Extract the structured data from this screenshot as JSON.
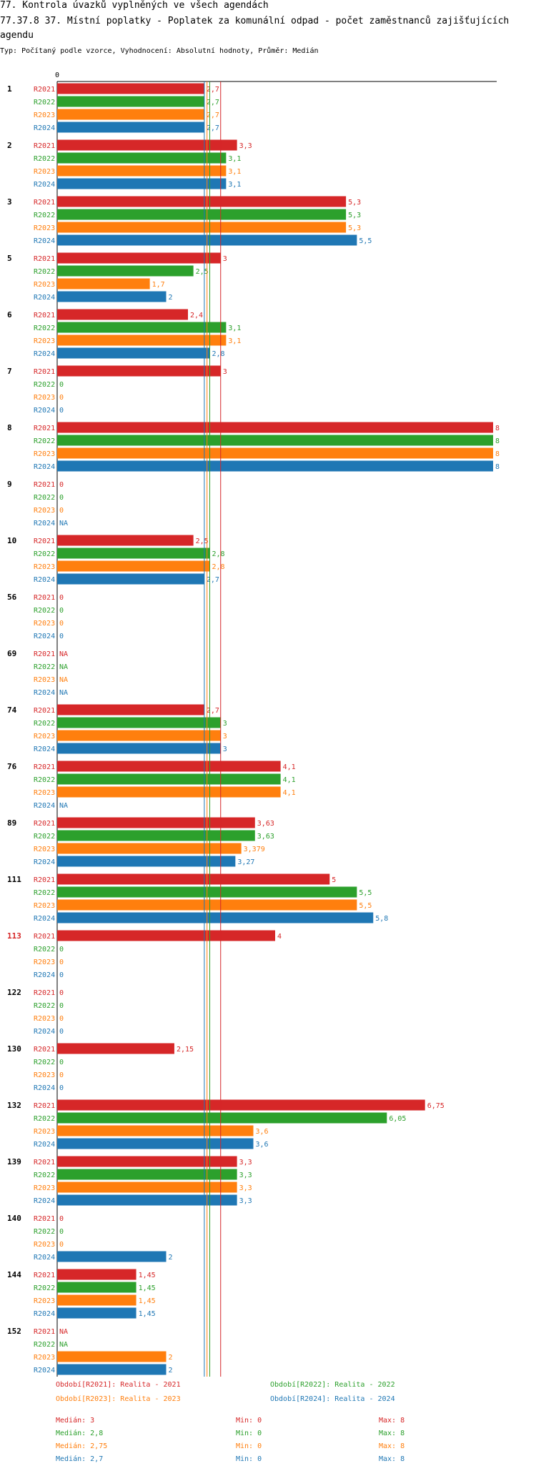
{
  "title": "77. Kontrola úvazků vyplněných ve všech agendách",
  "subtitle": "77.37.8 37. Místní poplatky - Poplatek za komunální odpad - počet zaměstnanců zajišťujících agendu",
  "type_line": "Typ: Počítaný podle vzorce, Vyhodnocení: Absolutní hodnoty, Průměr: Medián",
  "colors": {
    "R2021": "#d62728",
    "R2022": "#2ca02c",
    "R2023": "#ff7f0e",
    "R2024": "#1f77b4",
    "highlight": "#d62728"
  },
  "chart_data": {
    "type": "bar",
    "orientation": "horizontal",
    "x_tick_label": "0",
    "xlim": [
      0,
      8
    ],
    "series_names": [
      "R2021",
      "R2022",
      "R2023",
      "R2024"
    ],
    "highlighted_category": "113",
    "median_lines": {
      "R2021": 3,
      "R2022": 2.8,
      "R2023": 2.75,
      "R2024": 2.7
    },
    "groups": [
      {
        "label": "1",
        "values": [
          2.7,
          2.7,
          2.7,
          2.7
        ],
        "labels": [
          "2,7",
          "2,7",
          "2,7",
          "2,7"
        ]
      },
      {
        "label": "2",
        "values": [
          3.3,
          3.1,
          3.1,
          3.1
        ],
        "labels": [
          "3,3",
          "3,1",
          "3,1",
          "3,1"
        ]
      },
      {
        "label": "3",
        "values": [
          5.3,
          5.3,
          5.3,
          5.5
        ],
        "labels": [
          "5,3",
          "5,3",
          "5,3",
          "5,5"
        ]
      },
      {
        "label": "5",
        "values": [
          3,
          2.5,
          1.7,
          2
        ],
        "labels": [
          "3",
          "2,5",
          "1,7",
          "2"
        ]
      },
      {
        "label": "6",
        "values": [
          2.4,
          3.1,
          3.1,
          2.8
        ],
        "labels": [
          "2,4",
          "3,1",
          "3,1",
          "2,8"
        ]
      },
      {
        "label": "7",
        "values": [
          3,
          0,
          0,
          0
        ],
        "labels": [
          "3",
          "0",
          "0",
          "0"
        ]
      },
      {
        "label": "8",
        "values": [
          8,
          8,
          8,
          8
        ],
        "labels": [
          "8",
          "8",
          "8",
          "8"
        ]
      },
      {
        "label": "9",
        "values": [
          0,
          0,
          0,
          null
        ],
        "labels": [
          "0",
          "0",
          "0",
          "NA"
        ]
      },
      {
        "label": "10",
        "values": [
          2.5,
          2.8,
          2.8,
          2.7
        ],
        "labels": [
          "2,5",
          "2,8",
          "2,8",
          "2,7"
        ]
      },
      {
        "label": "56",
        "values": [
          0,
          0,
          0,
          0
        ],
        "labels": [
          "0",
          "0",
          "0",
          "0"
        ]
      },
      {
        "label": "69",
        "values": [
          null,
          null,
          null,
          null
        ],
        "labels": [
          "NA",
          "NA",
          "NA",
          "NA"
        ]
      },
      {
        "label": "74",
        "values": [
          2.7,
          3,
          3,
          3
        ],
        "labels": [
          "2,7",
          "3",
          "3",
          "3"
        ]
      },
      {
        "label": "76",
        "values": [
          4.1,
          4.1,
          4.1,
          null
        ],
        "labels": [
          "4,1",
          "4,1",
          "4,1",
          "NA"
        ]
      },
      {
        "label": "89",
        "values": [
          3.63,
          3.63,
          3.379,
          3.27
        ],
        "labels": [
          "3,63",
          "3,63",
          "3,379",
          "3,27"
        ]
      },
      {
        "label": "111",
        "values": [
          5,
          5.5,
          5.5,
          5.8
        ],
        "labels": [
          "5",
          "5,5",
          "5,5",
          "5,8"
        ]
      },
      {
        "label": "113",
        "values": [
          4,
          0,
          0,
          0
        ],
        "labels": [
          "4",
          "0",
          "0",
          "0"
        ]
      },
      {
        "label": "122",
        "values": [
          0,
          0,
          0,
          0
        ],
        "labels": [
          "0",
          "0",
          "0",
          "0"
        ]
      },
      {
        "label": "130",
        "values": [
          2.15,
          0,
          0,
          0
        ],
        "labels": [
          "2,15",
          "0",
          "0",
          "0"
        ]
      },
      {
        "label": "132",
        "values": [
          6.75,
          6.05,
          3.6,
          3.6
        ],
        "labels": [
          "6,75",
          "6,05",
          "3,6",
          "3,6"
        ]
      },
      {
        "label": "139",
        "values": [
          3.3,
          3.3,
          3.3,
          3.3
        ],
        "labels": [
          "3,3",
          "3,3",
          "3,3",
          "3,3"
        ]
      },
      {
        "label": "140",
        "values": [
          0,
          0,
          0,
          2
        ],
        "labels": [
          "0",
          "0",
          "0",
          "2"
        ]
      },
      {
        "label": "144",
        "values": [
          1.45,
          1.45,
          1.45,
          1.45
        ],
        "labels": [
          "1,45",
          "1,45",
          "1,45",
          "1,45"
        ]
      },
      {
        "label": "152",
        "values": [
          null,
          null,
          2,
          2
        ],
        "labels": [
          "NA",
          "NA",
          "2",
          "2"
        ]
      }
    ]
  },
  "legend": {
    "periods": [
      "Období[R2021]: Realita - 2021",
      "Období[R2022]: Realita - 2022",
      "Období[R2023]: Realita - 2023",
      "Období[R2024]: Realita - 2024"
    ],
    "stats": [
      {
        "median": "Medián: 3",
        "min": "Min: 0",
        "max": "Max: 8"
      },
      {
        "median": "Medián: 2,8",
        "min": "Min: 0",
        "max": "Max: 8"
      },
      {
        "median": "Medián: 2,75",
        "min": "Min: 0",
        "max": "Max: 8"
      },
      {
        "median": "Medián: 2,7",
        "min": "Min: 0",
        "max": "Max: 8"
      }
    ]
  }
}
